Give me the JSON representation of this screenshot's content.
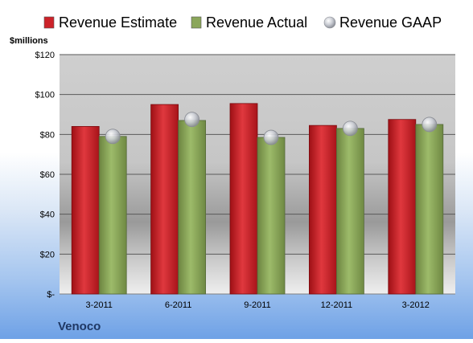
{
  "chart_data": {
    "type": "bar",
    "unit_label": "$millions",
    "categories": [
      "3-2011",
      "6-2011",
      "9-2011",
      "12-2011",
      "3-2012"
    ],
    "series": [
      {
        "name": "Revenue Estimate",
        "kind": "bar",
        "color": "#cc2229",
        "values": [
          84,
          95,
          95.5,
          84.5,
          87.5
        ]
      },
      {
        "name": "Revenue Actual",
        "kind": "bar",
        "color": "#8aa65a",
        "values": [
          79,
          87,
          78.5,
          83,
          85
        ]
      },
      {
        "name": "Revenue GAAP",
        "kind": "marker",
        "color": "#b9bcc4",
        "values": [
          79,
          87.5,
          78.5,
          83,
          85
        ]
      }
    ],
    "ylim": [
      0,
      120
    ],
    "yticks": [
      0,
      20,
      40,
      60,
      80,
      100,
      120
    ],
    "ytick_labels": [
      "$-",
      "$20",
      "$40",
      "$60",
      "$80",
      "$100",
      "$120"
    ],
    "grid": true,
    "legend_position": "top"
  },
  "company": "Venoco"
}
